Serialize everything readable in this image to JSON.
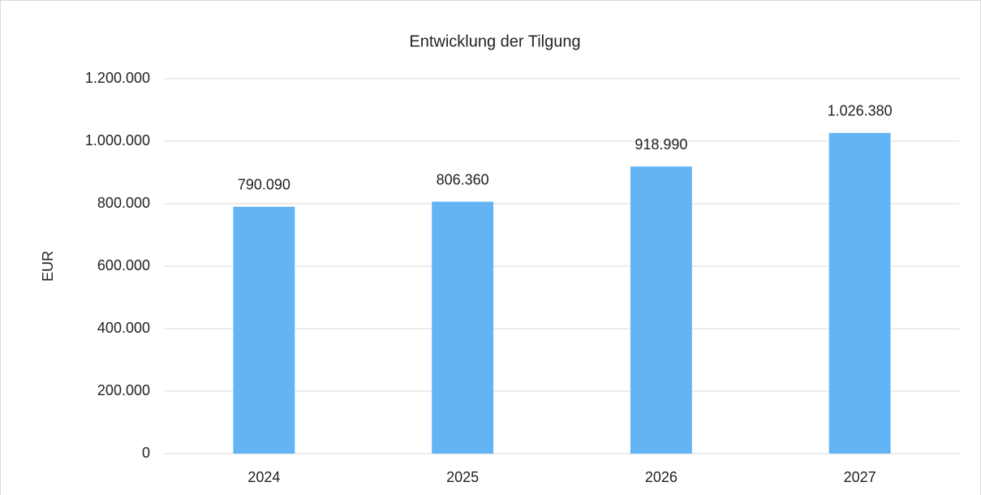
{
  "chart_data": {
    "type": "bar",
    "title": "Entwicklung der Tilgung",
    "y_label": "EUR",
    "categories": [
      "2024",
      "2025",
      "2026",
      "2027"
    ],
    "values": [
      790090,
      806360,
      918990,
      1026380
    ],
    "value_labels": [
      "790.090",
      "806.360",
      "918.990",
      "1.026.380"
    ],
    "color": "#63b4f5",
    "ylim": [
      0,
      1200000
    ],
    "yticks": [
      0,
      {
        "value": 200000,
        "label": "200.000"
      },
      {
        "value": 400000,
        "label": "400.000"
      },
      {
        "value": 600000,
        "label": "600.000"
      },
      {
        "value": 800000,
        "label": "800.000"
      },
      {
        "value": 1000000,
        "label": "1.000.000"
      },
      {
        "value": 1200000,
        "label": "1.200.000"
      }
    ],
    "grid": true
  }
}
